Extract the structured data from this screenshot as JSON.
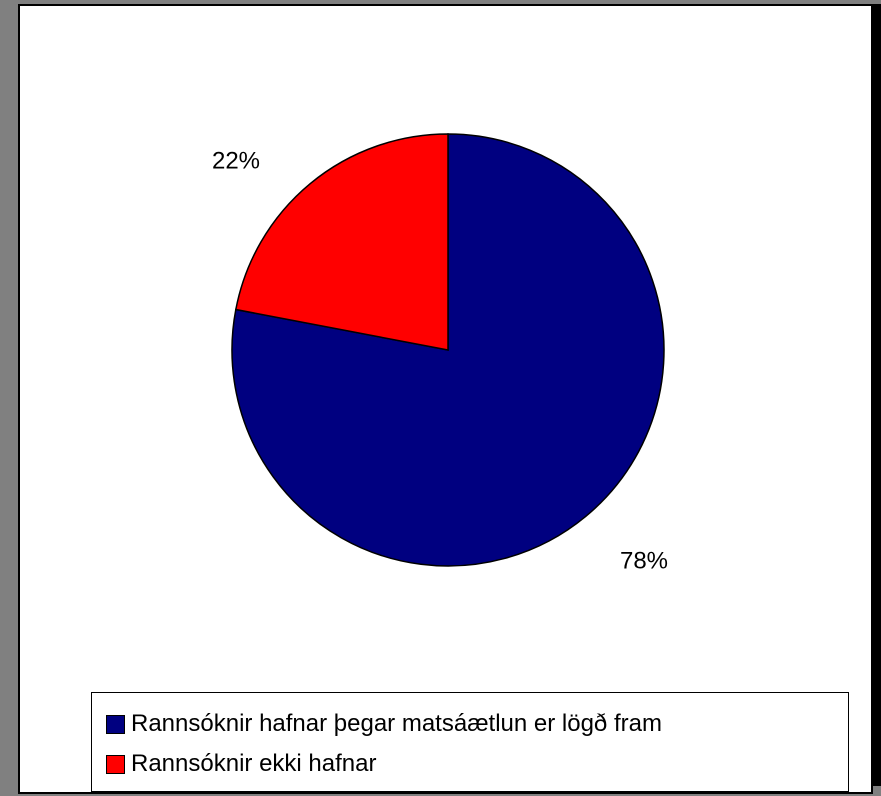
{
  "chart_data": {
    "type": "pie",
    "title": "",
    "categories": [
      "Rannsóknir hafnar þegar matsáætlun er lögð fram",
      "Rannsóknir ekki hafnar"
    ],
    "values": [
      78,
      22
    ],
    "data_labels": [
      "78%",
      "22%"
    ],
    "colors": [
      "#000080",
      "#ff0000"
    ],
    "legend": {
      "position": "bottom",
      "entries": [
        "Rannsóknir hafnar þegar matsáætlun er lögð fram",
        "Rannsóknir ekki hafnar"
      ]
    },
    "start_angle": "12 o'clock",
    "direction": "clockwise"
  }
}
